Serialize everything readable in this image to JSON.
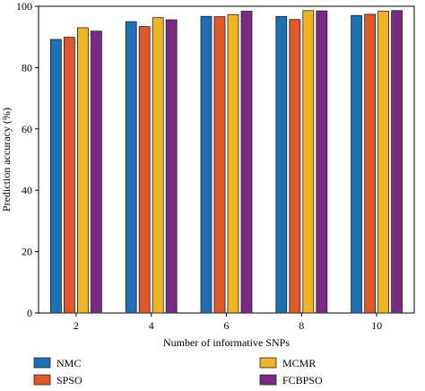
{
  "chart_data": {
    "type": "bar",
    "title": "",
    "xlabel": "Number of informative SNPs",
    "ylabel": "Prediction accuracy (%)",
    "categories": [
      "2",
      "4",
      "6",
      "8",
      "10"
    ],
    "ylim": [
      0,
      100
    ],
    "yticks": [
      0,
      20,
      40,
      60,
      80,
      100
    ],
    "grid": false,
    "legend_position": "bottom",
    "series": [
      {
        "name": "NMC",
        "color": "#1f6fb5",
        "values": [
          89.2,
          95.0,
          96.7,
          96.7,
          97.0
        ]
      },
      {
        "name": "SPSO",
        "color": "#e0572a",
        "values": [
          89.9,
          93.4,
          96.6,
          95.7,
          97.4
        ]
      },
      {
        "name": "MCMR",
        "color": "#f0b323",
        "values": [
          93.0,
          96.3,
          97.3,
          98.6,
          98.4
        ]
      },
      {
        "name": "FCBPSO",
        "color": "#7b2b84",
        "values": [
          91.9,
          95.6,
          98.4,
          98.5,
          98.6
        ]
      }
    ]
  }
}
